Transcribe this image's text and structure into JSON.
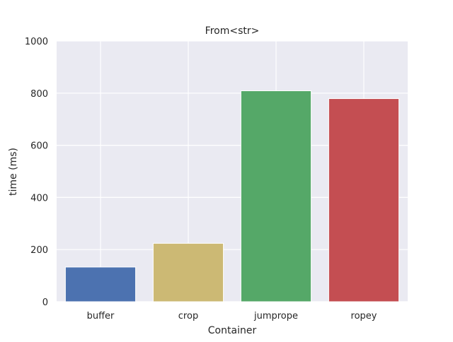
{
  "chart_data": {
    "type": "bar",
    "title": "From<str>",
    "xlabel": "Container",
    "ylabel": "time (ms)",
    "categories": [
      "buffer",
      "crop",
      "jumprope",
      "ropey"
    ],
    "values": [
      133,
      224,
      809,
      779
    ],
    "ylim": [
      0,
      1000
    ],
    "yticks": [
      0,
      200,
      400,
      600,
      800,
      1000
    ],
    "grid": true,
    "colors": {
      "plot_background": "#eaeaf2",
      "grid": "#ffffff",
      "bars": [
        "#4c72b0",
        "#ccb974",
        "#55a868",
        "#c44e52"
      ]
    }
  }
}
